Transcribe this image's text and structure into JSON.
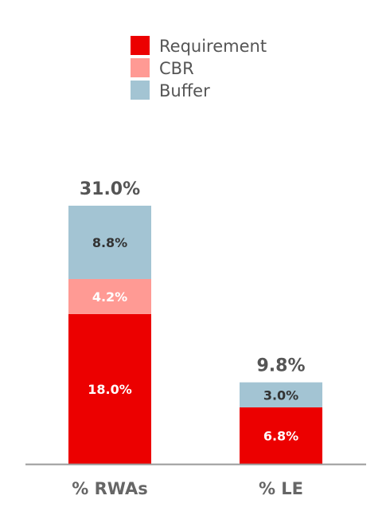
{
  "chart_data": {
    "type": "bar",
    "stacked": true,
    "categories": [
      "% RWAs",
      "% LE"
    ],
    "totals": [
      "31.0%",
      "9.8%"
    ],
    "series": [
      {
        "name": "Requirement",
        "values": [
          18.0,
          6.8
        ],
        "labels": [
          "18.0%",
          "6.8%"
        ],
        "color": "#EC0000",
        "label_color": "#FFFFFF"
      },
      {
        "name": "CBR",
        "values": [
          4.2,
          0
        ],
        "labels": [
          "4.2%",
          ""
        ],
        "color": "#FF9A94",
        "label_color": "#FFFFFF"
      },
      {
        "name": "Buffer",
        "values": [
          8.8,
          3.0
        ],
        "labels": [
          "8.8%",
          "3.0%"
        ],
        "color": "#A3C4D3",
        "label_color": "#333333"
      }
    ],
    "legend_position": "top-center",
    "grid": false,
    "ylim": [
      0,
      31
    ]
  }
}
